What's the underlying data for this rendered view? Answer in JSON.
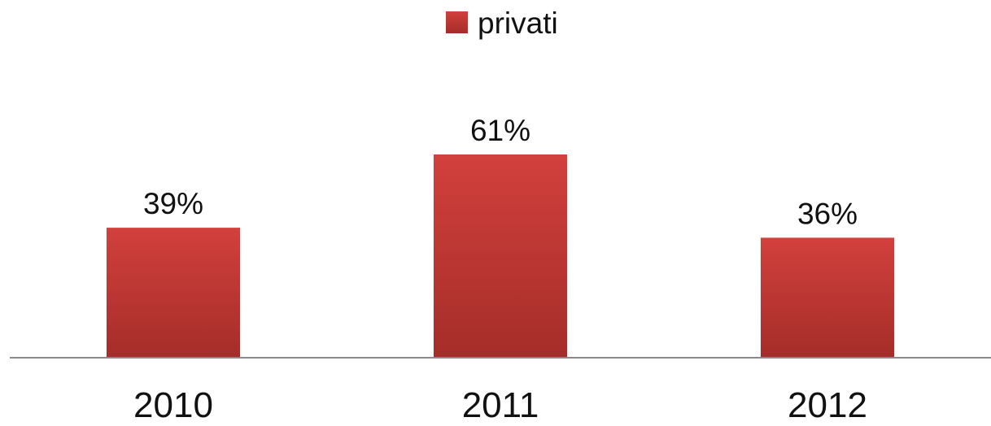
{
  "chart_data": {
    "type": "bar",
    "categories": [
      "2010",
      "2011",
      "2012"
    ],
    "series": [
      {
        "name": "privati",
        "values": [
          39,
          61,
          36
        ],
        "labels": [
          "39%",
          "61%",
          "36%"
        ]
      }
    ],
    "ylim": [
      0,
      81
    ],
    "value_format": "percent",
    "legend_position": "top",
    "grid": false,
    "colors": {
      "bar_top": "#d2403c",
      "bar_bottom": "#a52d29",
      "axis": "#8a8a8a"
    }
  }
}
